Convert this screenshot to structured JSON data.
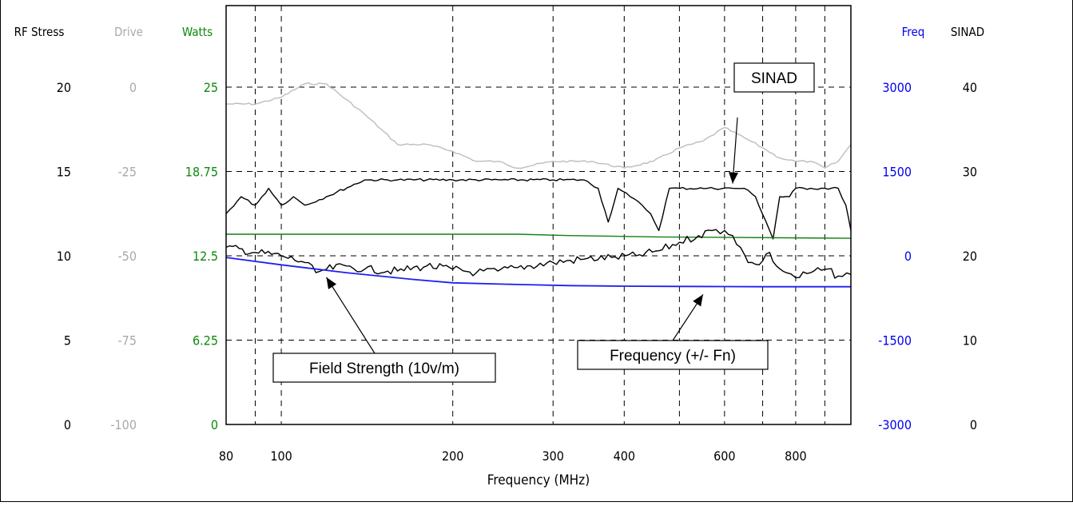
{
  "chart_data": {
    "type": "line",
    "xlabel": "Frequency (MHz)",
    "x_scale": "log",
    "xlim": [
      80,
      1000
    ],
    "x_ticks": [
      80,
      100,
      200,
      300,
      400,
      600,
      800
    ],
    "grid": true,
    "axes": [
      {
        "key": "rf_stress",
        "label": "RF Stress",
        "ticks": [
          "0",
          "5",
          "10",
          "15",
          "20"
        ],
        "range": [
          0,
          20
        ],
        "color": "#000000"
      },
      {
        "key": "drive",
        "label": "Drive",
        "ticks": [
          "-100",
          "-75",
          "-50",
          "-25",
          "0"
        ],
        "range": [
          -100,
          0
        ],
        "color": "#a9a9a9"
      },
      {
        "key": "watts",
        "label": "Watts",
        "ticks": [
          "0",
          "6.25",
          "12.5",
          "18.75",
          "25"
        ],
        "range": [
          0,
          25
        ],
        "color": "#0b8a0b"
      },
      {
        "key": "freq",
        "label": "Freq",
        "ticks": [
          "-3000",
          "-1500",
          "0",
          "1500",
          "3000"
        ],
        "range": [
          -3000,
          3000
        ],
        "color": "#0000ee"
      },
      {
        "key": "sinad",
        "label": "SINAD",
        "ticks": [
          "0",
          "10",
          "20",
          "30",
          "40"
        ],
        "range": [
          0,
          40
        ],
        "color": "#000000"
      }
    ],
    "series": [
      {
        "name": "",
        "axis": "drive",
        "color": "#bdbdbd",
        "x": [
          80,
          90,
          100,
          110,
          120,
          140,
          160,
          180,
          200,
          220,
          240,
          260,
          300,
          350,
          400,
          450,
          500,
          550,
          600,
          650,
          700,
          750,
          800,
          850,
          900,
          950,
          1000
        ],
        "y": [
          -5,
          -5,
          -3,
          1,
          1,
          -8,
          -17,
          -17,
          -19,
          -22,
          -22,
          -24,
          -22,
          -22,
          -24,
          -22,
          -18,
          -16,
          -12,
          -15,
          -18,
          -21,
          -22,
          -22,
          -24,
          -22,
          -17
        ]
      },
      {
        "name": "",
        "axis": "sinad",
        "color": "#000000",
        "x": [
          80,
          85,
          90,
          95,
          100,
          105,
          110,
          120,
          140,
          160,
          200,
          250,
          300,
          340,
          360,
          375,
          390,
          410,
          430,
          445,
          460,
          480,
          500,
          560,
          620,
          650,
          680,
          710,
          730,
          750,
          780,
          800,
          850,
          900,
          950,
          980,
          1000
        ],
        "y": [
          25,
          27,
          26,
          28,
          26,
          27,
          26,
          27,
          29,
          29,
          29,
          29,
          29,
          29,
          28,
          24,
          28,
          27,
          26,
          25,
          23,
          28,
          28,
          28,
          28,
          28,
          27,
          24,
          22,
          27,
          27,
          28,
          28,
          28,
          28,
          26,
          23
        ]
      },
      {
        "name": "",
        "axis": "watts",
        "color": "#128012",
        "x": [
          80,
          200,
          260,
          320,
          460,
          1000
        ],
        "y": [
          14.1,
          14.1,
          14.1,
          14.0,
          13.9,
          13.8
        ]
      },
      {
        "name": "",
        "axis": "rf_stress",
        "color": "#000000",
        "x": [
          80,
          90,
          100,
          110,
          115,
          120,
          130,
          140,
          160,
          180,
          200,
          220,
          240,
          260,
          300,
          340,
          380,
          420,
          460,
          500,
          540,
          570,
          600,
          620,
          640,
          660,
          680,
          700,
          720,
          740,
          770,
          800,
          850,
          900,
          950,
          1000
        ],
        "y": [
          10.5,
          10.2,
          10,
          9.6,
          9,
          9.2,
          9.4,
          9.2,
          9.1,
          9.4,
          9.2,
          9,
          9.1,
          9.3,
          9.6,
          9.8,
          9.9,
          10,
          10.3,
          10.8,
          11.2,
          11.5,
          11.5,
          11.2,
          10.5,
          9.6,
          9.5,
          9.7,
          10.2,
          9.4,
          9.0,
          8.7,
          9.0,
          9.2,
          8.8,
          8.9
        ]
      },
      {
        "name": "",
        "axis": "freq",
        "color": "#1f1fee",
        "x": [
          80,
          100,
          130,
          170,
          200,
          260,
          320,
          400,
          500,
          600,
          700,
          800,
          900,
          1000
        ],
        "y": [
          -30,
          -160,
          -300,
          -420,
          -480,
          -510,
          -530,
          -540,
          -545,
          -548,
          -550,
          -550,
          -550,
          -550
        ]
      }
    ],
    "annotations": [
      {
        "text": "SINAD",
        "target_x": 620,
        "target_axis": "sinad",
        "target_y": 28
      },
      {
        "text": "Field Strength (10v/m)",
        "target_x": 120,
        "target_axis": "rf_stress",
        "target_y": 9.2
      },
      {
        "text": "Frequency (+/- Fn)",
        "target_x": 550,
        "target_axis": "freq",
        "target_y": -545
      }
    ]
  }
}
